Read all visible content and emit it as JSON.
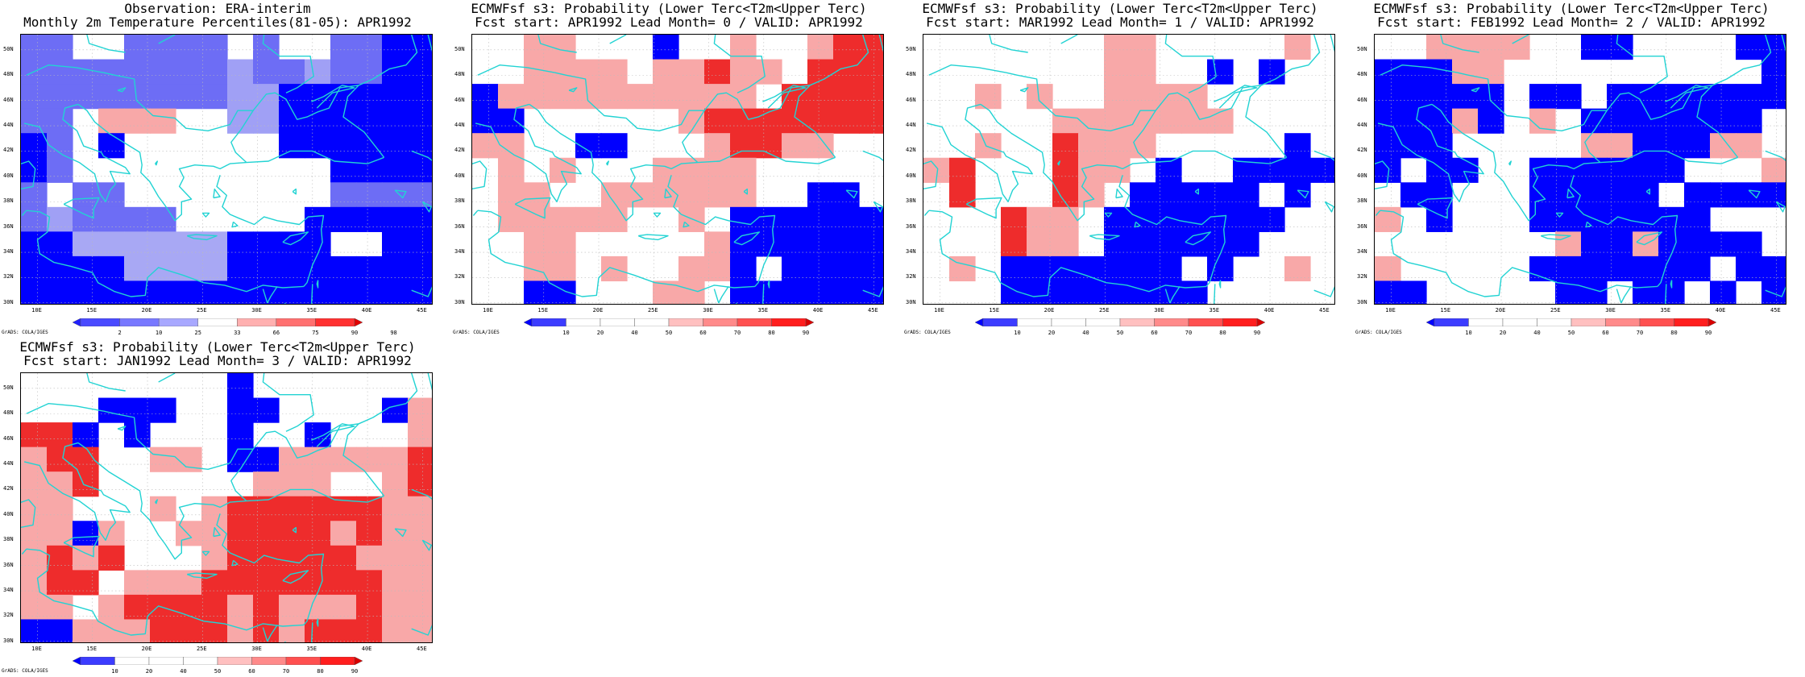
{
  "panels": [
    {
      "id": "obs",
      "title_line1": "Observation: ERA-interim",
      "title_line2": "Monthly 2m Temperature Percentiles(81-05): APR1992",
      "colorbar_ticks": [
        "2",
        "10",
        "25",
        "33",
        "66",
        "75",
        "90",
        "98"
      ],
      "colorbar_colors": [
        "#1f1fff",
        "#4a4aff",
        "#7878ff",
        "#a8a8ff",
        "#ffffff",
        "#ffb0b0",
        "#ff7070",
        "#ff3030",
        "#e00000"
      ],
      "grid": [
        "ww..wwww.w..wwbb",
        "wwwwwwwwmwwmwwbb",
        "wwwwwwwwmmbbbbbb",
        "ww.ppp..mmbbbbbb",
        "bw.b......bbbbbb",
        "bw..........bbbb",
        "w.ww........wwww",
        "wmwwww.....bbbbb",
        "bbllllllbbbb..bb",
        "bbbbllllbbbbbbbb",
        "bbbbbbbbbbbbbbbb"
      ]
    },
    {
      "id": "lead0",
      "title_line1": "ECMWFsf s3: Probability (Lower Terc<T2m<Upper Terc)",
      "title_line2": "Fcst start: APR1992  Lead Month= 0 / VALID: APR1992",
      "colorbar_ticks": [
        "10",
        "20",
        "40",
        "50",
        "60",
        "70",
        "80",
        "90"
      ],
      "grid": [
        "..pp...b..p..pRR",
        "..pppp.ppRpp.RRR",
        "bpppppppppp.RRRR",
        "bb......pRRRRRRR",
        "pp..bb...pRRpp..",
        ".p.p...pppp.....",
        ".pp..pppppp..bb.",
        ".ppppp..p.bbbbbb",
        "..pp.....pbbbbbb",
        "..pp.p..ppb.bbbb",
        "..bb...pp.bbbbbb"
      ]
    },
    {
      "id": "lead1",
      "title_line1": "ECMWFsf s3: Probability (Lower Terc<T2m<Upper Terc)",
      "title_line2": "Fcst start: MAR1992  Lead Month= 1 / VALID: APR1992",
      "colorbar_ticks": [
        "10",
        "20",
        "40",
        "50",
        "60",
        "70",
        "80",
        "90"
      ],
      "grid": [
        ".......pp.....p.",
        ".......pp..b.b..",
        "..p.p..pppp.....",
        ".....ppppppp....",
        "..p..Rppp.....b.",
        "pR...Rpp.b..bbbb",
        ".R...Rp.bbbbb.b.",
        "...Rpp.bbbbbbb..",
        "...Rpp.bbbbbb...",
        ".p.bbbbbbb.b..p.",
        "...bbbbbbbb....."
      ]
    },
    {
      "id": "lead2",
      "title_line1": "ECMWFsf s3: Probability (Lower Terc<T2m<Upper Terc)",
      "title_line2": "Fcst start: FEB1992  Lead Month= 2 / VALID: APR1992",
      "colorbar_ticks": [
        "10",
        "20",
        "40",
        "50",
        "60",
        "70",
        "80",
        "90"
      ],
      "grid": [
        "..pppp..bb....bb",
        "bbbpp..........b",
        "bbbbb.bb.bbbbbbb",
        "bbbpb.p.bbbbbbb.",
        "bbb.....ppbbbpp.",
        "b.bb..bbbbbb...p",
        ".bb...bbbbb.bbbb",
        "p.b...bbbbbbb...",
        ".......pbbpbbbb.",
        "p.....bbbbbbb.bb",
        "bb.....bb.bb.b.b"
      ]
    },
    {
      "id": "lead3",
      "title_line1": "ECMWFsf s3: Probability (Lower Terc<T2m<Upper Terc)",
      "title_line2": "Fcst start: JAN1992  Lead Month= 3 / VALID: APR1992",
      "colorbar_ticks": [
        "10",
        "20",
        "40",
        "50",
        "60",
        "70",
        "80",
        "90"
      ],
      "grid": [
        "........b.......",
        "...bbb..bb....bp",
        "RRb.b...b..b...p",
        "pRR..pp.bbpppppR",
        "ppR......ppp..pR",
        "pp...p.pRRRRRRpp",
        "ppbp..ppRRRRpRpp",
        "pRpR...pRRRRRppp",
        "pRR.pppRRRRRRRpp",
        "pp.pRRRRpRpppRpp",
        "bbpppRRRpRpRRRpp"
      ]
    }
  ],
  "prob_colorbar_colors": [
    "#0000ff",
    "#3c3cff",
    "#ffffff",
    "#ffffff",
    "#ffffff",
    "#ffc0c0",
    "#ff8a8a",
    "#ff5050",
    "#ff1e1e",
    "#d80000"
  ],
  "lat_labels": [
    "50N",
    "48N",
    "46N",
    "44N",
    "42N",
    "40N",
    "38N",
    "36N",
    "34N",
    "32N",
    "30N"
  ],
  "lon_labels": [
    "10E",
    "15E",
    "20E",
    "25E",
    "30E",
    "35E",
    "40E",
    "45E"
  ],
  "credit": "GrADS: COLA/IGES",
  "cell_colors": {
    "b": "#0000ff",
    "w": "#6d6df5",
    "l": "#a8a8f4",
    "m": "#a0a0f5",
    "p": "#f8a8a8",
    "R": "#ee2c2c",
    ".": "#ffffff"
  }
}
